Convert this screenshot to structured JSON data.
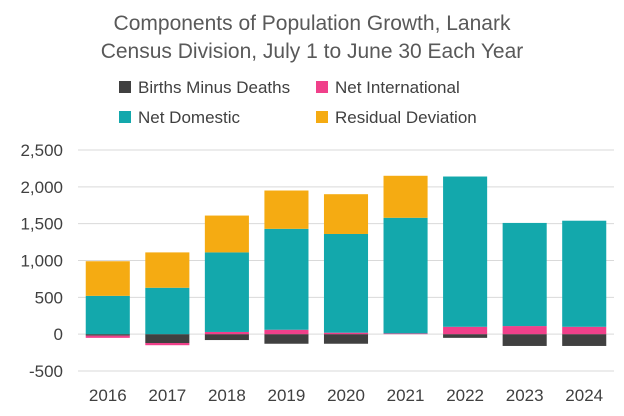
{
  "chart_data": {
    "type": "bar",
    "stacked": true,
    "title_lines": [
      "Components of Population Growth, Lanark",
      "Census Division, July 1 to June 30 Each Year"
    ],
    "categories": [
      "2016",
      "2017",
      "2018",
      "2019",
      "2020",
      "2021",
      "2022",
      "2023",
      "2024"
    ],
    "series": [
      {
        "name": "Births Minus Deaths",
        "color": "#404040",
        "values": [
          -20,
          -120,
          -80,
          -130,
          -130,
          0,
          -50,
          -160,
          -160
        ]
      },
      {
        "name": "Net International",
        "color": "#f0408a",
        "values": [
          -30,
          -30,
          30,
          60,
          20,
          10,
          100,
          110,
          100
        ]
      },
      {
        "name": "Net Domestic",
        "color": "#13a8ac",
        "values": [
          520,
          630,
          1080,
          1370,
          1340,
          1570,
          2040,
          1400,
          1440
        ]
      },
      {
        "name": "Residual Deviation",
        "color": "#f5ab12",
        "values": [
          470,
          480,
          500,
          520,
          540,
          570,
          0,
          0,
          0
        ]
      }
    ],
    "ylim": [
      -500,
      2500
    ],
    "yticks": [
      2500,
      2000,
      1500,
      1000,
      500,
      0,
      -500
    ],
    "ytick_labels": [
      "2,500",
      "2,000",
      "1,500",
      "1,000",
      "500",
      "0",
      "-500"
    ],
    "xlabel": "",
    "ylabel": "",
    "grid": true,
    "legend_position": "top"
  }
}
